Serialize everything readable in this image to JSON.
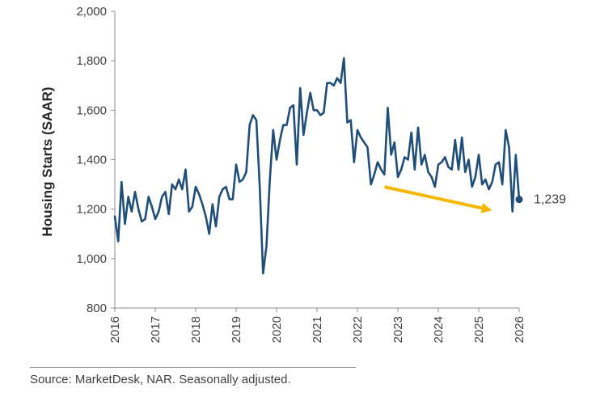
{
  "chart_data": {
    "type": "line",
    "title": "",
    "xlabel": "",
    "ylabel": "Housing Starts (SAAR)",
    "ylim": [
      800,
      2000
    ],
    "yticks": [
      "800",
      "1,000",
      "1,200",
      "1,400",
      "1,600",
      "1,800",
      "2,000"
    ],
    "ytick_values": [
      800,
      1000,
      1200,
      1400,
      1600,
      1800,
      2000
    ],
    "xlim": [
      2016,
      2026
    ],
    "xticks": [
      "2016",
      "2017",
      "2018",
      "2019",
      "2020",
      "2021",
      "2022",
      "2023",
      "2024",
      "2025",
      "2026"
    ],
    "xtick_values": [
      2016,
      2017,
      2018,
      2019,
      2020,
      2021,
      2022,
      2023,
      2024,
      2025,
      2026
    ],
    "grid": false,
    "series": [
      {
        "name": "",
        "color": "#1f4e79",
        "x": [
          2016.0,
          2016.083,
          2016.167,
          2016.25,
          2016.333,
          2016.417,
          2016.5,
          2016.583,
          2016.667,
          2016.75,
          2016.833,
          2016.917,
          2017.0,
          2017.083,
          2017.167,
          2017.25,
          2017.333,
          2017.417,
          2017.5,
          2017.583,
          2017.667,
          2017.75,
          2017.833,
          2017.917,
          2018.0,
          2018.083,
          2018.167,
          2018.25,
          2018.333,
          2018.417,
          2018.5,
          2018.583,
          2018.667,
          2018.75,
          2018.833,
          2018.917,
          2019.0,
          2019.083,
          2019.167,
          2019.25,
          2019.333,
          2019.417,
          2019.5,
          2019.583,
          2019.667,
          2019.75,
          2019.833,
          2019.917,
          2020.0,
          2020.083,
          2020.167,
          2020.25,
          2020.333,
          2020.417,
          2020.5,
          2020.583,
          2020.667,
          2020.75,
          2020.833,
          2020.917,
          2021.0,
          2021.083,
          2021.167,
          2021.25,
          2021.333,
          2021.417,
          2021.5,
          2021.583,
          2021.667,
          2021.75,
          2021.833,
          2021.917,
          2022.0,
          2022.083,
          2022.167,
          2022.25,
          2022.333,
          2022.417,
          2022.5,
          2022.583,
          2022.667,
          2022.75,
          2022.833,
          2022.917,
          2023.0,
          2023.083,
          2023.167,
          2023.25,
          2023.333,
          2023.417,
          2023.5,
          2023.583,
          2023.667,
          2023.75,
          2023.833,
          2023.917,
          2024.0,
          2024.083,
          2024.167,
          2024.25,
          2024.333,
          2024.417,
          2024.5,
          2024.583,
          2024.667,
          2024.75,
          2024.833,
          2024.917,
          2025.0,
          2025.083,
          2025.167,
          2025.25,
          2025.333,
          2025.417,
          2025.5,
          2025.583,
          2025.667,
          2025.75,
          2025.833,
          2025.917,
          2026.0
        ],
        "y": [
          1170,
          1070,
          1310,
          1140,
          1250,
          1190,
          1270,
          1200,
          1150,
          1160,
          1250,
          1210,
          1160,
          1190,
          1250,
          1270,
          1180,
          1300,
          1280,
          1320,
          1280,
          1360,
          1190,
          1210,
          1290,
          1260,
          1220,
          1170,
          1100,
          1220,
          1130,
          1250,
          1280,
          1290,
          1240,
          1240,
          1380,
          1310,
          1320,
          1350,
          1540,
          1580,
          1560,
          1290,
          940,
          1050,
          1320,
          1520,
          1400,
          1480,
          1540,
          1540,
          1610,
          1620,
          1380,
          1690,
          1500,
          1590,
          1670,
          1600,
          1600,
          1580,
          1590,
          1710,
          1710,
          1700,
          1730,
          1710,
          1810,
          1550,
          1560,
          1390,
          1520,
          1490,
          1470,
          1450,
          1300,
          1340,
          1390,
          1360,
          1340,
          1610,
          1420,
          1470,
          1330,
          1360,
          1410,
          1400,
          1510,
          1360,
          1530,
          1380,
          1420,
          1350,
          1330,
          1290,
          1380,
          1390,
          1410,
          1370,
          1360,
          1480,
          1360,
          1490,
          1350,
          1400,
          1290,
          1330,
          1420,
          1300,
          1320,
          1280,
          1310,
          1380,
          1390,
          1300,
          1520,
          1450,
          1190,
          1420,
          1239
        ]
      }
    ],
    "end_label": "1,239",
    "end_value": 1239,
    "annotations": [
      {
        "type": "trend-arrow",
        "color": "#f5b800",
        "x_start": 2022.67,
        "y_start": 1290,
        "x_end": 2025.33,
        "y_end": 1195
      }
    ]
  },
  "source": "Source: MarketDesk, NAR. Seasonally adjusted."
}
